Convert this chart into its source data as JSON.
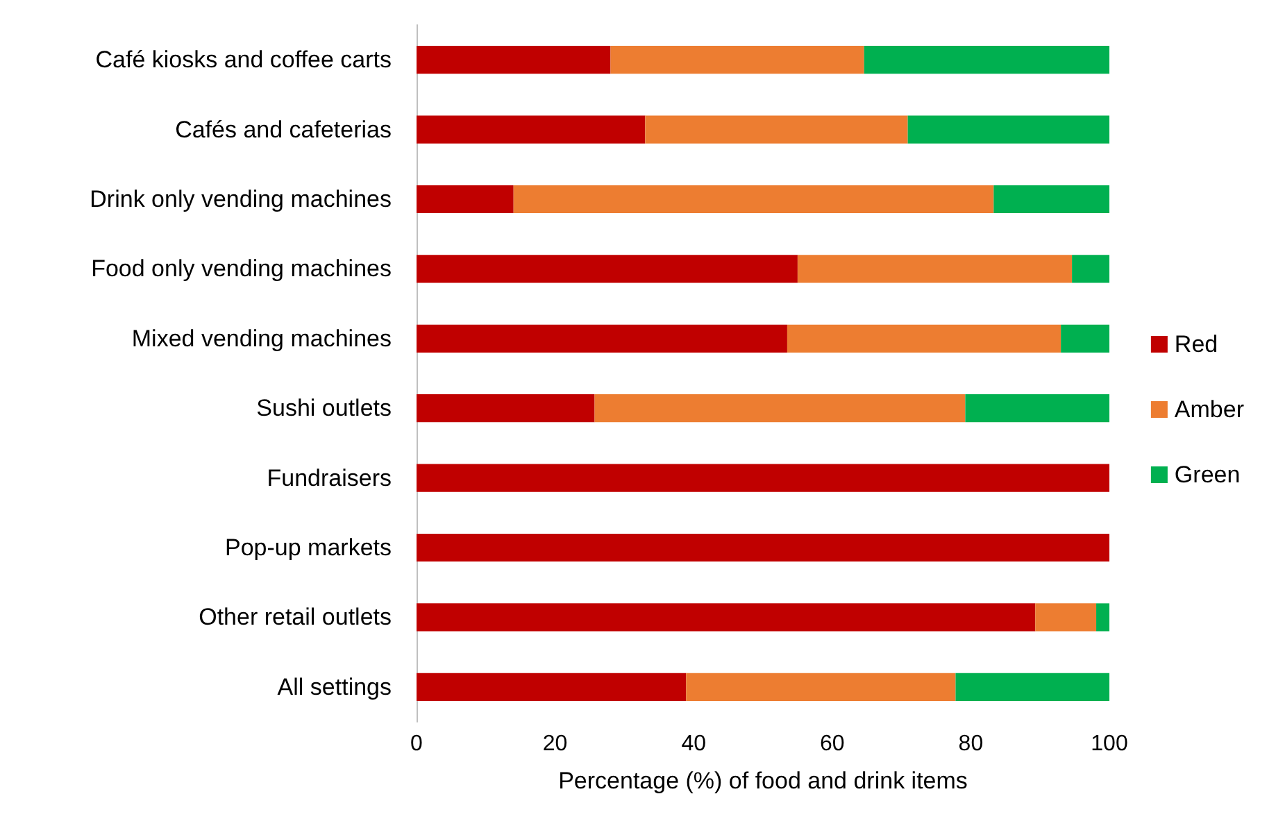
{
  "chart_data": {
    "type": "bar",
    "orientation": "horizontal",
    "stacked": true,
    "xlabel": "Percentage (%) of food and drink items",
    "categories": [
      "Café kiosks and coffee carts",
      "Cafés and cafeterias",
      "Drink only vending machines",
      "Food only vending machines",
      "Mixed vending machines",
      "Sushi outlets",
      "Fundraisers",
      "Pop-up markets",
      "Other retail outlets",
      "All settings"
    ],
    "series": [
      {
        "name": "Red",
        "color": "#c00000",
        "values": [
          28,
          33,
          14,
          55,
          53.5,
          25.7,
          100,
          100,
          89.3,
          38.9
        ]
      },
      {
        "name": "Amber",
        "color": "#ed7d31",
        "values": [
          36.6,
          37.9,
          69.3,
          39.6,
          39.5,
          53.5,
          0,
          0,
          8.8,
          38.9
        ]
      },
      {
        "name": "Green",
        "color": "#00b050",
        "values": [
          35.4,
          29.1,
          16.7,
          5.4,
          7,
          20.8,
          0,
          0,
          1.9,
          22.2
        ]
      }
    ],
    "xlim": [
      0,
      100
    ],
    "xticks": [
      0,
      20,
      40,
      60,
      80,
      100
    ],
    "grid": false,
    "legend": "right"
  }
}
